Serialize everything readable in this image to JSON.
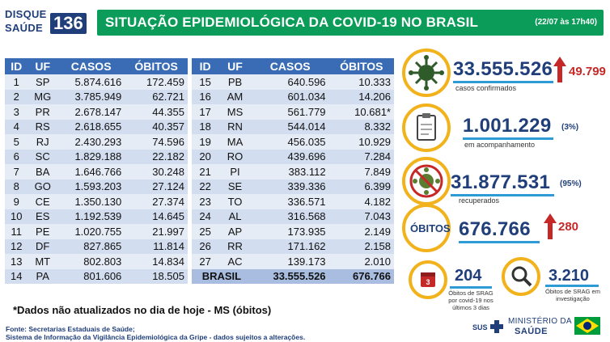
{
  "header": {
    "logo_disque": "DISQUE",
    "logo_saude": "SAÚDE",
    "logo_number": "136",
    "title": "SITUAÇÃO EPIDEMIOLÓGICA DA COVID-19 NO BRASIL",
    "date": "(22/07 às 17h40)"
  },
  "table": {
    "headers": [
      "ID",
      "UF",
      "CASOS",
      "ÓBITOS"
    ],
    "left_rows": [
      [
        "1",
        "SP",
        "5.874.616",
        "172.459"
      ],
      [
        "2",
        "MG",
        "3.785.949",
        "62.721"
      ],
      [
        "3",
        "PR",
        "2.678.147",
        "44.355"
      ],
      [
        "4",
        "RS",
        "2.618.655",
        "40.357"
      ],
      [
        "5",
        "RJ",
        "2.430.293",
        "74.596"
      ],
      [
        "6",
        "SC",
        "1.829.188",
        "22.182"
      ],
      [
        "7",
        "BA",
        "1.646.766",
        "30.248"
      ],
      [
        "8",
        "GO",
        "1.593.203",
        "27.124"
      ],
      [
        "9",
        "CE",
        "1.350.130",
        "27.374"
      ],
      [
        "10",
        "ES",
        "1.192.539",
        "14.645"
      ],
      [
        "11",
        "PE",
        "1.020.755",
        "21.997"
      ],
      [
        "12",
        "DF",
        "827.865",
        "11.814"
      ],
      [
        "13",
        "MT",
        "802.803",
        "14.834"
      ],
      [
        "14",
        "PA",
        "801.606",
        "18.505"
      ]
    ],
    "right_rows": [
      [
        "15",
        "PB",
        "640.596",
        "10.333"
      ],
      [
        "16",
        "AM",
        "601.034",
        "14.206"
      ],
      [
        "17",
        "MS",
        "561.779",
        "10.681*"
      ],
      [
        "18",
        "RN",
        "544.014",
        "8.332"
      ],
      [
        "19",
        "MA",
        "456.035",
        "10.929"
      ],
      [
        "20",
        "RO",
        "439.696",
        "7.284"
      ],
      [
        "21",
        "PI",
        "383.112",
        "7.849"
      ],
      [
        "22",
        "SE",
        "339.336",
        "6.399"
      ],
      [
        "23",
        "TO",
        "336.571",
        "4.182"
      ],
      [
        "24",
        "AL",
        "316.568",
        "7.043"
      ],
      [
        "25",
        "AP",
        "173.935",
        "2.149"
      ],
      [
        "26",
        "RR",
        "171.162",
        "2.158"
      ],
      [
        "27",
        "AC",
        "139.173",
        "2.010"
      ]
    ],
    "total": {
      "label": "BRASIL",
      "casos": "33.555.526",
      "obitos": "676.766"
    }
  },
  "stats": {
    "confirmed": {
      "value": "33.555.526",
      "label": "casos confirmados",
      "delta": "49.799"
    },
    "monitoring": {
      "value": "1.001.229",
      "label": "em acompanhamento",
      "pct": "(3%)"
    },
    "recovered": {
      "value": "31.877.531",
      "label": "recuperados",
      "pct": "(95%)"
    },
    "deaths": {
      "badge": "ÓBITOS",
      "value": "676.766",
      "delta": "280"
    },
    "srag_recent": {
      "value": "204",
      "label": "Óbitos de SRAG por covid-19 nos últimos 3 dias",
      "badge": "3"
    },
    "srag_investigation": {
      "value": "3.210",
      "label": "Óbitos de SRAG em investigação"
    }
  },
  "footer": {
    "note": "*Dados não atualizados no dia de hoje - MS (óbitos)",
    "source_line1": "Fonte: Secretarias Estaduais de Saúde;",
    "source_line2": "Sistema de Informação da Vigilância Epidemiológica da Gripe - dados sujeitos a alterações.",
    "sus": "SUS",
    "ministry_line1": "MINISTÉRIO DA",
    "ministry_line2": "SAÚDE"
  },
  "colors": {
    "green": "#0a9c58",
    "navy": "#1f3e7a",
    "table_header": "#3a6cb6",
    "accent": "#f2b21b",
    "red": "#c62828"
  }
}
